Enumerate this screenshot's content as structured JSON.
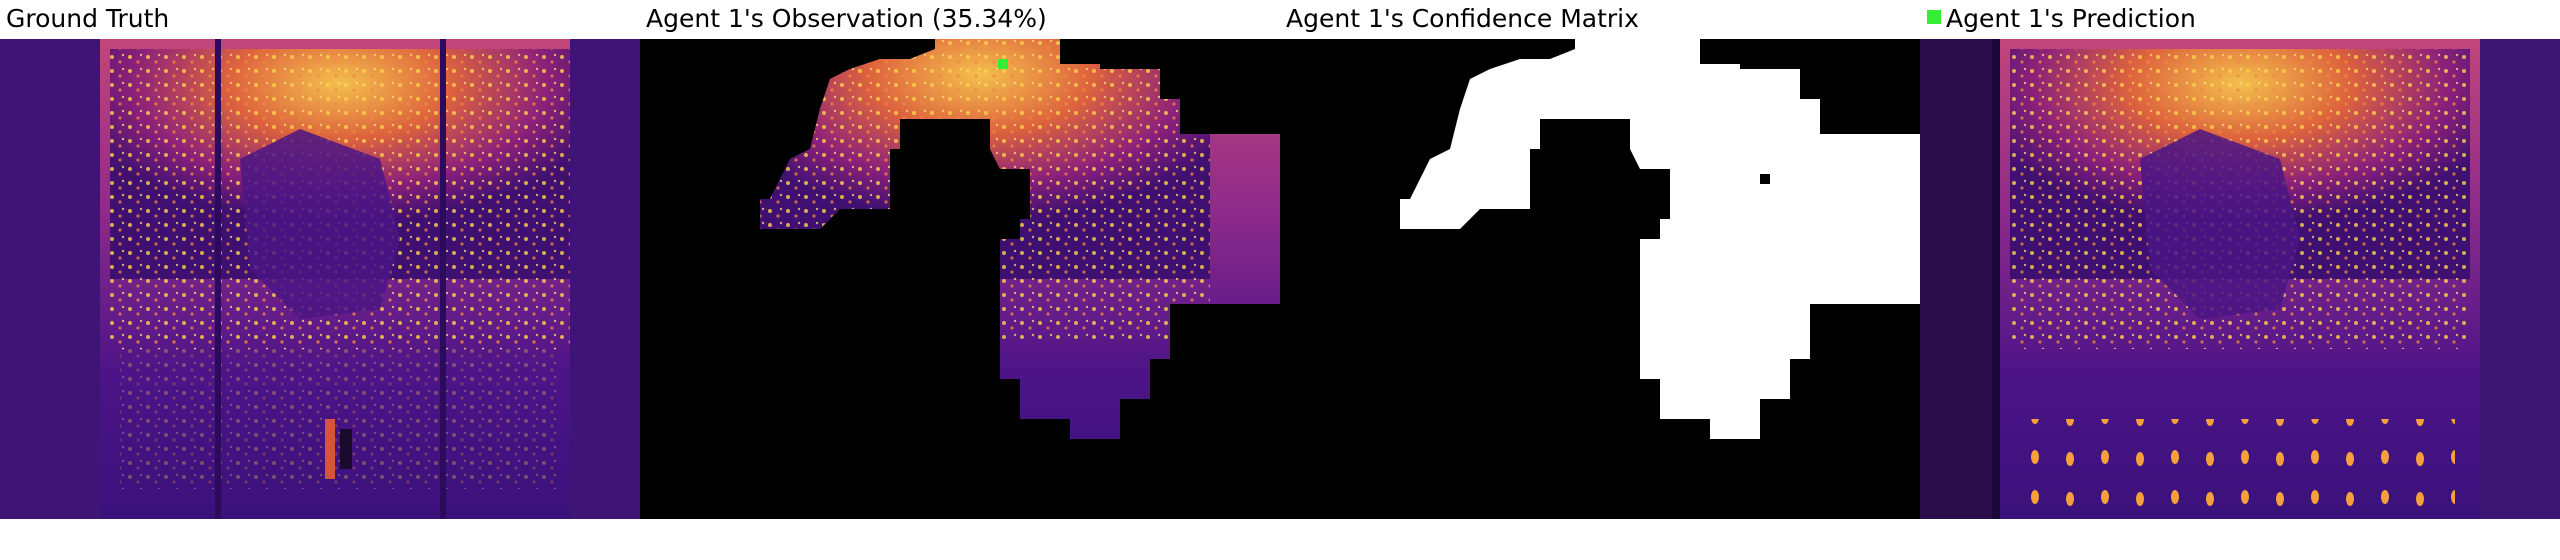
{
  "panels": {
    "ground_truth": {
      "title": "Ground Truth"
    },
    "observation": {
      "title": "Agent 1's Observation (35.34%)"
    },
    "confidence": {
      "title": "Agent 1's Confidence Matrix"
    },
    "prediction": {
      "title": "Agent 1's Prediction"
    }
  },
  "colors": {
    "agent_marker": "#33ee33",
    "heat_low": "#3b0f70",
    "heat_mid": "#b4367a",
    "heat_high": "#fcd14a",
    "mask": "#000000",
    "confident": "#ffffff"
  }
}
